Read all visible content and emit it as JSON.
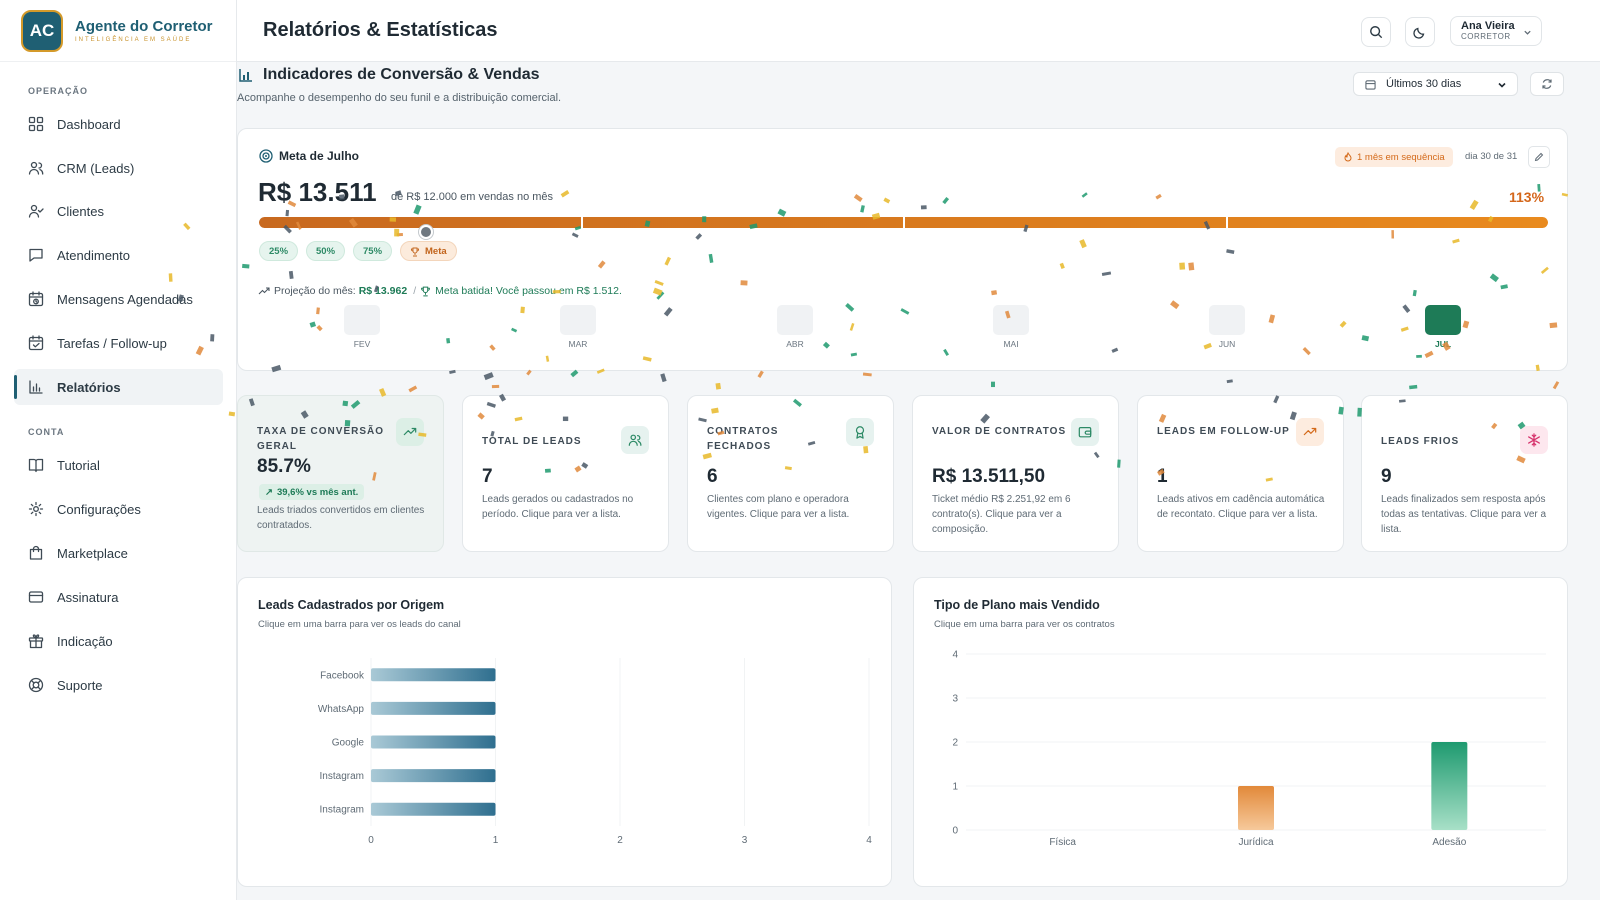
{
  "brand": {
    "initials": "AC",
    "name": "Agente do Corretor",
    "tagline": "INTELIGÊNCIA EM SAÚDE"
  },
  "sidebar": {
    "section_operacao": "OPERAÇÃO",
    "section_conta": "CONTA",
    "items": [
      {
        "label": "Dashboard",
        "icon": "grid-icon"
      },
      {
        "label": "CRM (Leads)",
        "icon": "users-icon"
      },
      {
        "label": "Clientes",
        "icon": "user-check-icon"
      },
      {
        "label": "Atendimento",
        "icon": "message-square-icon"
      },
      {
        "label": "Mensagens Agendadas",
        "icon": "calendar-clock-icon"
      },
      {
        "label": "Tarefas / Follow-up",
        "icon": "calendar-check-icon"
      },
      {
        "label": "Relatórios",
        "icon": "bar-chart-icon",
        "active": true
      },
      {
        "label": "Tutorial",
        "icon": "book-icon"
      },
      {
        "label": "Configurações",
        "icon": "gear-icon"
      },
      {
        "label": "Marketplace",
        "icon": "shopping-bag-icon"
      },
      {
        "label": "Assinatura",
        "icon": "credit-card-icon"
      },
      {
        "label": "Indicação",
        "icon": "gift-icon"
      },
      {
        "label": "Suporte",
        "icon": "lifebuoy-icon"
      }
    ]
  },
  "header": {
    "title": "Relatórios & Estatísticas",
    "user_name": "Ana Vieira",
    "user_role": "CORRETOR"
  },
  "section": {
    "title": "Indicadores de Conversão & Vendas",
    "subtitle": "Acompanhe o desempenho do seu funil e a distribuição comercial.",
    "period": "Últimos 30 dias"
  },
  "goal": {
    "title": "Meta de Julho",
    "streak": "1 mês em sequência",
    "day": "dia 30 de 31",
    "value": "R$ 13.511",
    "of_text": "de R$ 12.000 em vendas no mês",
    "percent": "113%",
    "progress": 1.0,
    "chips": [
      "25%",
      "50%",
      "75%"
    ],
    "meta_chip": "Meta",
    "projection_label": "Projeção do mês:",
    "projection_value": "R$ 13.962",
    "success_text": "Meta batida! Você passou em R$ 1.512.",
    "months": [
      "FEV",
      "MAR",
      "ABR",
      "MAI",
      "JUN",
      "JUL"
    ]
  },
  "kpis": [
    {
      "label": "TAXA DE CONVERSÃO GERAL",
      "value": "85.7%",
      "trend": "39,6% vs mês ant.",
      "desc": "Leads triados convertidos em clientes contratados.",
      "icon": "trending-up-icon",
      "icon_color": "#2d8a66",
      "icon_bg": "#dcefe6"
    },
    {
      "label": "TOTAL DE LEADS",
      "value": "7",
      "desc": "Leads gerados ou cadastrados no período. Clique para ver a lista.",
      "icon": "users-icon",
      "icon_color": "#2d8a66",
      "icon_bg": "#e6f2ef"
    },
    {
      "label": "CONTRATOS FECHADOS",
      "value": "6",
      "desc": "Clientes com plano e operadora vigentes. Clique para ver a lista.",
      "icon": "award-icon",
      "icon_color": "#2d8a66",
      "icon_bg": "#e6f2ef"
    },
    {
      "label": "VALOR DE CONTRATOS",
      "value": "R$ 13.511,50",
      "desc": "Ticket médio R$ 2.251,92 em 6 contrato(s). Clique para ver a composição.",
      "icon": "wallet-icon",
      "icon_color": "#2d8a66",
      "icon_bg": "#e6f2ef"
    },
    {
      "label": "LEADS EM FOLLOW-UP",
      "value": "1",
      "desc": "Leads ativos em cadência automática de recontato. Clique para ver a lista.",
      "icon": "trending-up-icon",
      "icon_color": "#d46a1a",
      "icon_bg": "#fdecdf"
    },
    {
      "label": "LEADS FRIOS",
      "value": "9",
      "desc": "Leads finalizados sem resposta após todas as tentativas. Clique para ver a lista.",
      "icon": "snowflake-icon",
      "icon_color": "#d6336c",
      "icon_bg": "#fde7ee"
    }
  ],
  "charts": {
    "origin": {
      "title": "Leads Cadastrados por Origem",
      "subtitle": "Clique em uma barra para ver os leads do canal"
    },
    "plan": {
      "title": "Tipo de Plano mais Vendido",
      "subtitle": "Clique em uma barra para ver os contratos"
    }
  },
  "chart_data": [
    {
      "type": "bar",
      "orientation": "horizontal",
      "title": "Leads Cadastrados por Origem",
      "categories": [
        "Facebook",
        "WhatsApp",
        "Google",
        "Instagram",
        "Instagram"
      ],
      "values": [
        1,
        1,
        1,
        1,
        1
      ],
      "xlim": [
        0,
        4
      ],
      "xticks": [
        0,
        1,
        2,
        3,
        4
      ]
    },
    {
      "type": "bar",
      "title": "Tipo de Plano mais Vendido",
      "categories": [
        "Física",
        "Jurídica",
        "Adesão"
      ],
      "values": [
        0,
        1,
        2
      ],
      "colors": [
        "#e08a3c",
        "#e08a3c",
        "#1e9a6f"
      ],
      "ylim": [
        0,
        4
      ],
      "yticks": [
        0,
        1,
        2,
        3,
        4
      ]
    }
  ]
}
